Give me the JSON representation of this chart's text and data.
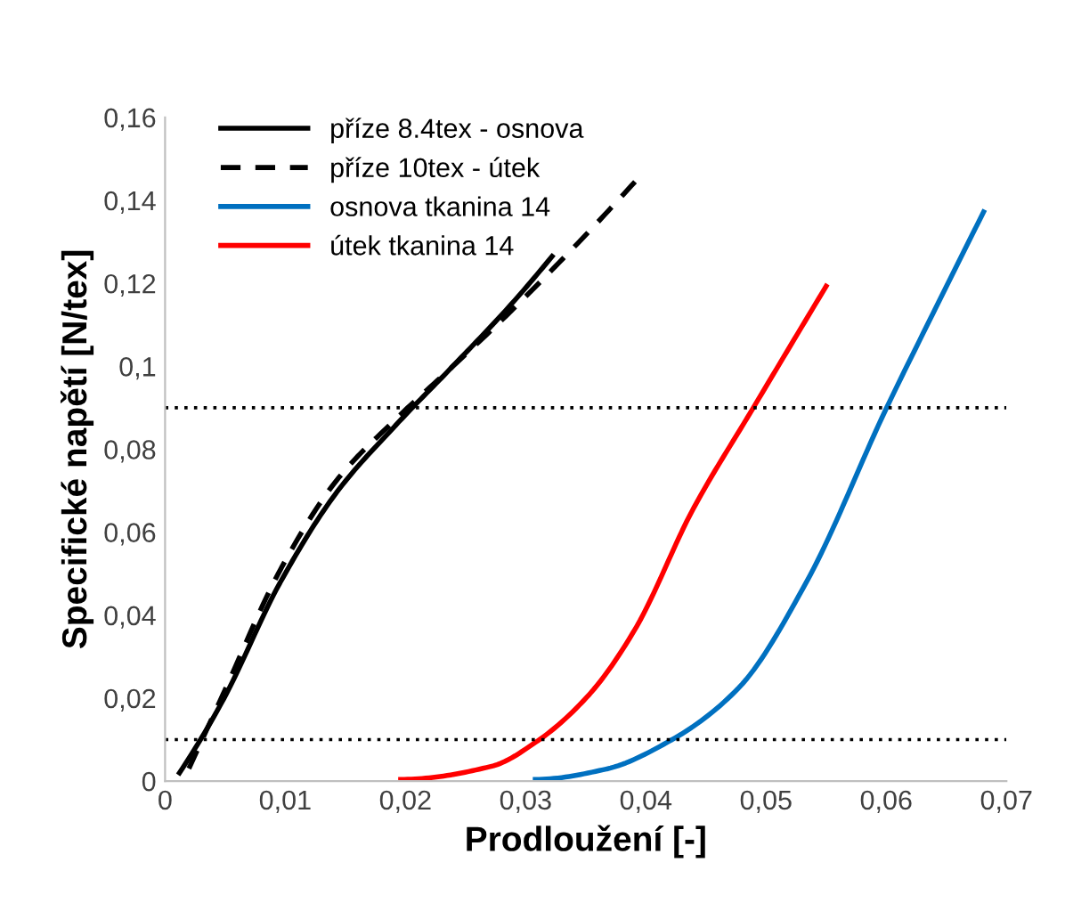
{
  "chart_data": {
    "type": "line",
    "xlabel": "Prodloužení [-]",
    "ylabel": "Specifické napětí [N/tex]",
    "xlim": [
      0,
      0.07
    ],
    "ylim": [
      0,
      0.16
    ],
    "xticks": [
      0,
      {
        "value": 0.01,
        "label": "0,01"
      },
      {
        "value": 0.02,
        "label": "0,02"
      },
      {
        "value": 0.03,
        "label": "0,03"
      },
      {
        "value": 0.04,
        "label": "0,04"
      },
      {
        "value": 0.05,
        "label": "0,05"
      },
      {
        "value": 0.06,
        "label": "0,06"
      },
      {
        "value": 0.07,
        "label": "0,07"
      }
    ],
    "yticks": [
      0,
      {
        "value": 0.02,
        "label": "0,02"
      },
      {
        "value": 0.04,
        "label": "0,04"
      },
      {
        "value": 0.06,
        "label": "0,06"
      },
      {
        "value": 0.08,
        "label": "0,08"
      },
      {
        "value": 0.1,
        "label": "0,1"
      },
      {
        "value": 0.12,
        "label": "0,12"
      },
      {
        "value": 0.14,
        "label": "0,14"
      },
      {
        "value": 0.16,
        "label": "0,16"
      }
    ],
    "grid": false,
    "legend": "top left",
    "marker": "none",
    "ref_lines": [
      {
        "axis": "y",
        "value": 0.09,
        "color": "#000000",
        "line_style": "dotted"
      },
      {
        "axis": "y",
        "value": 0.01,
        "color": "#000000",
        "line_style": "dotted"
      }
    ],
    "series": [
      {
        "name": "příze 8.4tex - osnova",
        "color": "#000000",
        "line_style": "solid",
        "x": [
          0.0012,
          0.0048,
          0.0096,
          0.0143,
          0.0191,
          0.0239,
          0.0286,
          0.0322
        ],
        "values": [
          0.002,
          0.0194,
          0.048,
          0.0697,
          0.0855,
          0.0999,
          0.1143,
          0.1265
        ]
      },
      {
        "name": "příze 10tex - útek",
        "color": "#000000",
        "line_style": "dashed",
        "x": [
          0.0015,
          0.0048,
          0.0096,
          0.0143,
          0.0191,
          0.0239,
          0.0286,
          0.0391
        ],
        "values": [
          0,
          0.0208,
          0.051,
          0.0726,
          0.087,
          0.0999,
          0.1128,
          0.1445
        ]
      },
      {
        "name": "osnova tkanina 14",
        "color": "#0070c0",
        "line_style": "solid",
        "x": [
          0.0308,
          0.0367,
          0.042,
          0.0477,
          0.0534,
          0.06,
          0.0639,
          0.0681
        ],
        "values": [
          0.0004,
          0.0029,
          0.0097,
          0.0224,
          0.0482,
          0.0898,
          0.1128,
          0.1372
        ]
      },
      {
        "name": "útek tkanina 14",
        "color": "#ff0000",
        "line_style": "solid",
        "x": [
          0.0196,
          0.0272,
          0.031,
          0.0353,
          0.0391,
          0.0439,
          0.0489,
          0.055
        ],
        "values": [
          0.0004,
          0.0036,
          0.0097,
          0.0209,
          0.0366,
          0.0654,
          0.0898,
          0.1193
        ]
      }
    ]
  }
}
